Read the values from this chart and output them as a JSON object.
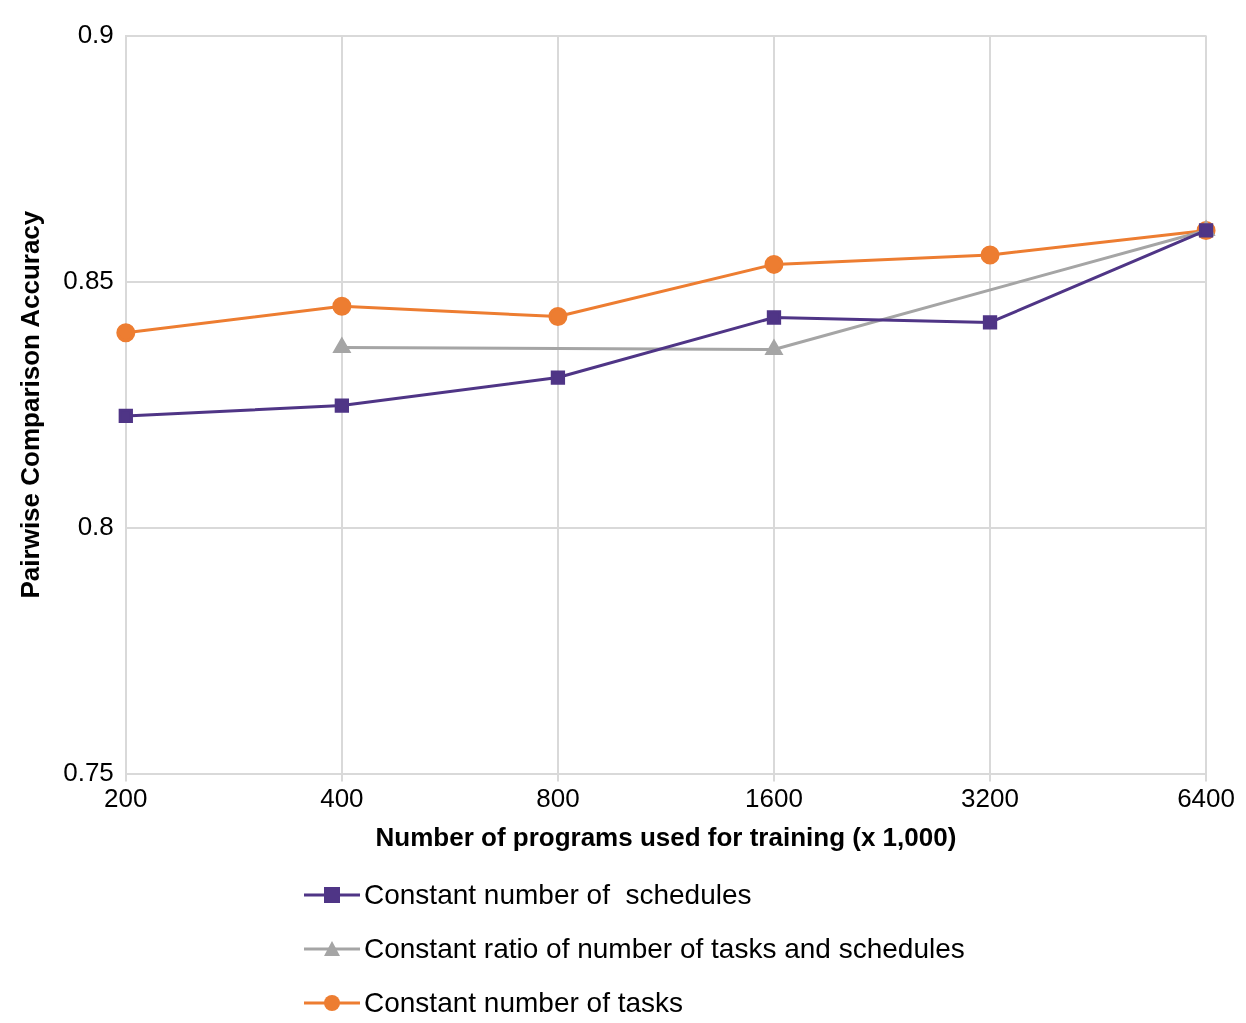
{
  "chart_data": {
    "type": "line",
    "xlabel": "Number of programs used for training (x 1,000)",
    "ylabel": "Pairwise Comparison Accuracy",
    "categories": [
      "200",
      "400",
      "800",
      "1600",
      "3200",
      "6400"
    ],
    "series": [
      {
        "name": "Constant number of  schedules",
        "color": "#4f3586",
        "marker": "square",
        "values": [
          0.8227,
          0.8248,
          0.8305,
          0.8427,
          0.8417,
          0.8604
        ]
      },
      {
        "name": "Constant ratio of number of tasks and schedules",
        "color": "#a5a5a5",
        "marker": "triangle",
        "values": [
          null,
          0.8366,
          null,
          0.8362,
          null,
          0.8604
        ]
      },
      {
        "name": "Constant number of tasks",
        "color": "#ed7d31",
        "marker": "circle",
        "values": [
          0.8396,
          0.845,
          0.8429,
          0.8535,
          0.8554,
          0.8604
        ]
      }
    ],
    "ylim": [
      0.75,
      0.9
    ],
    "yticks": [
      0.75,
      0.8,
      0.85,
      0.9
    ],
    "grid": true,
    "legend": "bottom",
    "line_style": "solid"
  }
}
